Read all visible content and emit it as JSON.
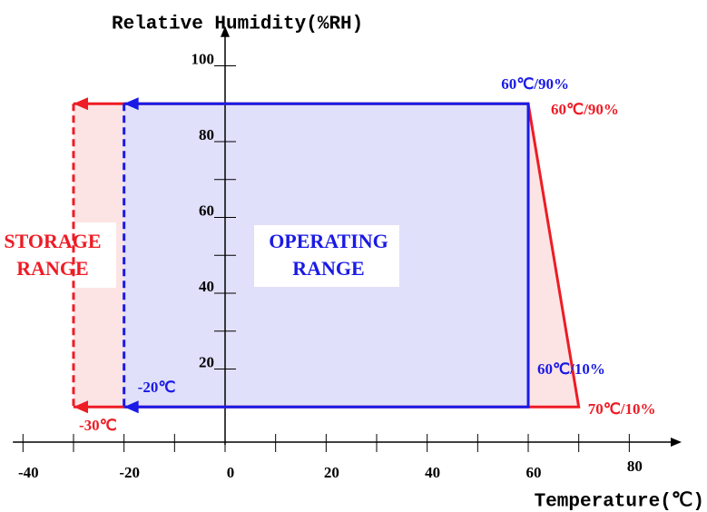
{
  "chart_data": {
    "type": "region",
    "y_label": "Relative Humidity(%RH)",
    "x_label": "Temperature(℃)",
    "xlim": [
      -42,
      90
    ],
    "ylim": [
      0,
      110
    ],
    "xticks": [
      -40,
      -20,
      0,
      20,
      40,
      60,
      80
    ],
    "yticks": [
      20,
      40,
      60,
      80,
      100
    ],
    "regions": [
      {
        "label": [
          "STORAGE",
          "RANGE"
        ],
        "color": "#ee1c25",
        "fill": "#fde4e4",
        "points": [
          [
            -30,
            90
          ],
          [
            60,
            90
          ],
          [
            70,
            10
          ],
          [
            -30,
            10
          ]
        ],
        "vertex_labels": [
          null,
          "60℃/90%",
          "70℃/10%",
          "-30℃"
        ]
      },
      {
        "label": [
          "OPERATING",
          "RANGE"
        ],
        "color": "#1a1ae6",
        "fill": "#e0e0fb",
        "points": [
          [
            -20,
            90
          ],
          [
            60,
            90
          ],
          [
            60,
            10
          ],
          [
            -20,
            10
          ]
        ],
        "vertex_labels": [
          null,
          "60℃/90%",
          "60℃/10%",
          "-20℃"
        ]
      }
    ]
  }
}
